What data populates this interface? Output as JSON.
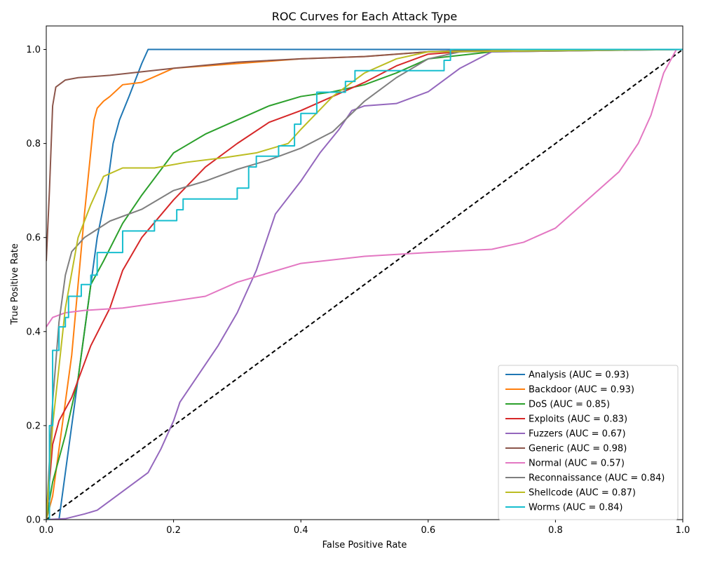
{
  "chart_data": {
    "type": "line",
    "title": "ROC Curves for Each Attack Type",
    "xlabel": "False Positive Rate",
    "ylabel": "True Positive Rate",
    "xlim": [
      0,
      1
    ],
    "ylim": [
      0,
      1.05
    ],
    "xticks": [
      "0.0",
      "0.2",
      "0.4",
      "0.6",
      "0.8",
      "1.0"
    ],
    "yticks": [
      "0.0",
      "0.2",
      "0.4",
      "0.6",
      "0.8",
      "1.0"
    ],
    "grid": false,
    "legend_position": "lower-right",
    "series": [
      {
        "name": "Analysis (AUC = 0.93)",
        "color": "#1f77b4",
        "step": false,
        "points": [
          [
            0,
            0
          ],
          [
            0.02,
            0
          ],
          [
            0.025,
            0.05
          ],
          [
            0.04,
            0.2
          ],
          [
            0.06,
            0.4
          ],
          [
            0.08,
            0.6
          ],
          [
            0.095,
            0.7
          ],
          [
            0.105,
            0.8
          ],
          [
            0.115,
            0.85
          ],
          [
            0.13,
            0.9
          ],
          [
            0.15,
            0.97
          ],
          [
            0.16,
            1.0
          ],
          [
            1,
            1.0
          ]
        ]
      },
      {
        "name": "Backdoor (AUC = 0.93)",
        "color": "#ff7f0e",
        "step": false,
        "points": [
          [
            0,
            0
          ],
          [
            0.01,
            0.05
          ],
          [
            0.02,
            0.15
          ],
          [
            0.04,
            0.35
          ],
          [
            0.06,
            0.65
          ],
          [
            0.075,
            0.85
          ],
          [
            0.08,
            0.875
          ],
          [
            0.09,
            0.89
          ],
          [
            0.1,
            0.9
          ],
          [
            0.12,
            0.925
          ],
          [
            0.15,
            0.93
          ],
          [
            0.2,
            0.96
          ],
          [
            0.3,
            0.97
          ],
          [
            0.4,
            0.98
          ],
          [
            0.5,
            0.985
          ],
          [
            0.6,
            0.995
          ],
          [
            0.75,
            1.0
          ],
          [
            1,
            1.0
          ]
        ]
      },
      {
        "name": "DoS (AUC = 0.85)",
        "color": "#2ca02c",
        "step": false,
        "points": [
          [
            0,
            0
          ],
          [
            0.01,
            0.08
          ],
          [
            0.03,
            0.18
          ],
          [
            0.05,
            0.3
          ],
          [
            0.07,
            0.5
          ],
          [
            0.09,
            0.55
          ],
          [
            0.12,
            0.63
          ],
          [
            0.15,
            0.69
          ],
          [
            0.2,
            0.78
          ],
          [
            0.25,
            0.82
          ],
          [
            0.3,
            0.85
          ],
          [
            0.35,
            0.88
          ],
          [
            0.4,
            0.9
          ],
          [
            0.45,
            0.91
          ],
          [
            0.5,
            0.925
          ],
          [
            0.55,
            0.95
          ],
          [
            0.6,
            0.98
          ],
          [
            0.7,
            0.995
          ],
          [
            1,
            1.0
          ]
        ]
      },
      {
        "name": "Exploits (AUC = 0.83)",
        "color": "#d62728",
        "step": false,
        "points": [
          [
            0,
            0
          ],
          [
            0.01,
            0.16
          ],
          [
            0.02,
            0.21
          ],
          [
            0.04,
            0.26
          ],
          [
            0.07,
            0.37
          ],
          [
            0.1,
            0.45
          ],
          [
            0.12,
            0.53
          ],
          [
            0.15,
            0.6
          ],
          [
            0.2,
            0.68
          ],
          [
            0.25,
            0.75
          ],
          [
            0.3,
            0.8
          ],
          [
            0.35,
            0.845
          ],
          [
            0.4,
            0.87
          ],
          [
            0.45,
            0.9
          ],
          [
            0.5,
            0.93
          ],
          [
            0.55,
            0.965
          ],
          [
            0.6,
            0.99
          ],
          [
            0.7,
            1.0
          ],
          [
            1,
            1.0
          ]
        ]
      },
      {
        "name": "Fuzzers (AUC = 0.67)",
        "color": "#9467bd",
        "step": false,
        "points": [
          [
            0,
            0
          ],
          [
            0.03,
            0.002
          ],
          [
            0.06,
            0.012
          ],
          [
            0.08,
            0.02
          ],
          [
            0.1,
            0.04
          ],
          [
            0.13,
            0.07
          ],
          [
            0.16,
            0.1
          ],
          [
            0.18,
            0.15
          ],
          [
            0.2,
            0.21
          ],
          [
            0.21,
            0.25
          ],
          [
            0.24,
            0.31
          ],
          [
            0.27,
            0.37
          ],
          [
            0.3,
            0.44
          ],
          [
            0.33,
            0.53
          ],
          [
            0.36,
            0.65
          ],
          [
            0.4,
            0.72
          ],
          [
            0.43,
            0.78
          ],
          [
            0.46,
            0.83
          ],
          [
            0.48,
            0.87
          ],
          [
            0.5,
            0.88
          ],
          [
            0.55,
            0.885
          ],
          [
            0.6,
            0.91
          ],
          [
            0.65,
            0.96
          ],
          [
            0.7,
            0.995
          ],
          [
            1,
            1.0
          ]
        ]
      },
      {
        "name": "Generic (AUC = 0.98)",
        "color": "#8c564b",
        "step": false,
        "points": [
          [
            0,
            0.55
          ],
          [
            0.005,
            0.7
          ],
          [
            0.01,
            0.88
          ],
          [
            0.015,
            0.92
          ],
          [
            0.03,
            0.935
          ],
          [
            0.05,
            0.94
          ],
          [
            0.1,
            0.945
          ],
          [
            0.2,
            0.96
          ],
          [
            0.3,
            0.973
          ],
          [
            0.4,
            0.98
          ],
          [
            0.5,
            0.985
          ],
          [
            0.6,
            0.995
          ],
          [
            0.7,
            1.0
          ],
          [
            1,
            1.0
          ]
        ]
      },
      {
        "name": "Normal (AUC = 0.57)",
        "color": "#e377c2",
        "step": false,
        "points": [
          [
            0,
            0.41
          ],
          [
            0.01,
            0.43
          ],
          [
            0.03,
            0.44
          ],
          [
            0.06,
            0.445
          ],
          [
            0.12,
            0.45
          ],
          [
            0.2,
            0.465
          ],
          [
            0.25,
            0.475
          ],
          [
            0.3,
            0.505
          ],
          [
            0.35,
            0.525
          ],
          [
            0.4,
            0.545
          ],
          [
            0.5,
            0.56
          ],
          [
            0.6,
            0.568
          ],
          [
            0.7,
            0.575
          ],
          [
            0.75,
            0.59
          ],
          [
            0.8,
            0.62
          ],
          [
            0.85,
            0.68
          ],
          [
            0.9,
            0.74
          ],
          [
            0.93,
            0.8
          ],
          [
            0.95,
            0.86
          ],
          [
            0.97,
            0.95
          ],
          [
            0.99,
            1.0
          ],
          [
            1,
            1.0
          ]
        ]
      },
      {
        "name": "Reconnaissance (AUC = 0.84)",
        "color": "#7f7f7f",
        "step": false,
        "points": [
          [
            0,
            0
          ],
          [
            0.01,
            0.25
          ],
          [
            0.02,
            0.42
          ],
          [
            0.03,
            0.52
          ],
          [
            0.04,
            0.57
          ],
          [
            0.06,
            0.6
          ],
          [
            0.1,
            0.635
          ],
          [
            0.15,
            0.66
          ],
          [
            0.2,
            0.7
          ],
          [
            0.25,
            0.72
          ],
          [
            0.3,
            0.745
          ],
          [
            0.35,
            0.765
          ],
          [
            0.4,
            0.79
          ],
          [
            0.45,
            0.825
          ],
          [
            0.5,
            0.89
          ],
          [
            0.55,
            0.94
          ],
          [
            0.6,
            0.98
          ],
          [
            0.65,
            0.995
          ],
          [
            1,
            1.0
          ]
        ]
      },
      {
        "name": "Shellcode (AUC = 0.87)",
        "color": "#bcbd22",
        "step": false,
        "points": [
          [
            0,
            0
          ],
          [
            0.01,
            0.2
          ],
          [
            0.03,
            0.45
          ],
          [
            0.05,
            0.6
          ],
          [
            0.07,
            0.67
          ],
          [
            0.09,
            0.73
          ],
          [
            0.12,
            0.748
          ],
          [
            0.17,
            0.748
          ],
          [
            0.22,
            0.76
          ],
          [
            0.28,
            0.77
          ],
          [
            0.33,
            0.78
          ],
          [
            0.38,
            0.8
          ],
          [
            0.4,
            0.83
          ],
          [
            0.45,
            0.9
          ],
          [
            0.5,
            0.95
          ],
          [
            0.55,
            0.98
          ],
          [
            0.6,
            0.995
          ],
          [
            1,
            1.0
          ]
        ]
      },
      {
        "name": "Worms (AUC = 0.84)",
        "color": "#17becf",
        "step": true,
        "points": [
          [
            0,
            0
          ],
          [
            0.005,
            0.2
          ],
          [
            0.01,
            0.36
          ],
          [
            0.02,
            0.41
          ],
          [
            0.03,
            0.43
          ],
          [
            0.035,
            0.475
          ],
          [
            0.055,
            0.5
          ],
          [
            0.07,
            0.52
          ],
          [
            0.08,
            0.568
          ],
          [
            0.12,
            0.614
          ],
          [
            0.17,
            0.636
          ],
          [
            0.205,
            0.659
          ],
          [
            0.215,
            0.682
          ],
          [
            0.3,
            0.705
          ],
          [
            0.318,
            0.75
          ],
          [
            0.33,
            0.773
          ],
          [
            0.365,
            0.795
          ],
          [
            0.39,
            0.841
          ],
          [
            0.4,
            0.864
          ],
          [
            0.425,
            0.909
          ],
          [
            0.47,
            0.932
          ],
          [
            0.485,
            0.955
          ],
          [
            0.625,
            0.977
          ],
          [
            0.635,
            1.0
          ],
          [
            1,
            1.0
          ]
        ]
      }
    ],
    "diagonal": {
      "color": "#000000",
      "style": "dashed"
    }
  }
}
